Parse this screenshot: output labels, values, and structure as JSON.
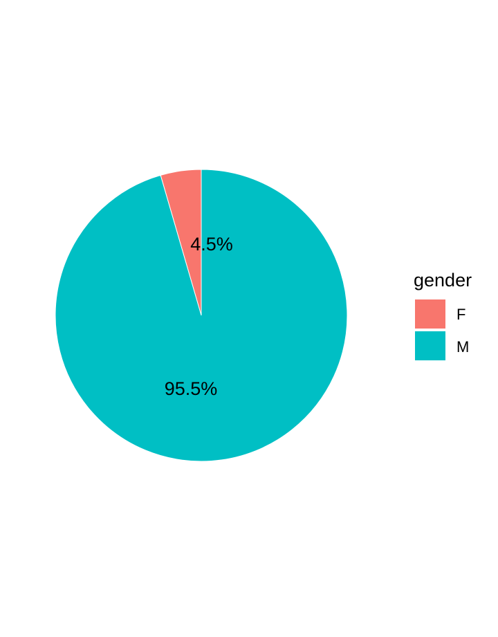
{
  "chart_data": {
    "type": "pie",
    "categories": [
      "F",
      "M"
    ],
    "values": [
      4.5,
      95.5
    ],
    "labels": [
      "4.5%",
      "95.5%"
    ],
    "colors": [
      "#F8766D",
      "#00BFC4"
    ],
    "legend": {
      "title": "gender",
      "position": "right",
      "entries": [
        "F",
        "M"
      ]
    },
    "start_angle": "12 o'clock",
    "direction": "counter-clockwise"
  }
}
